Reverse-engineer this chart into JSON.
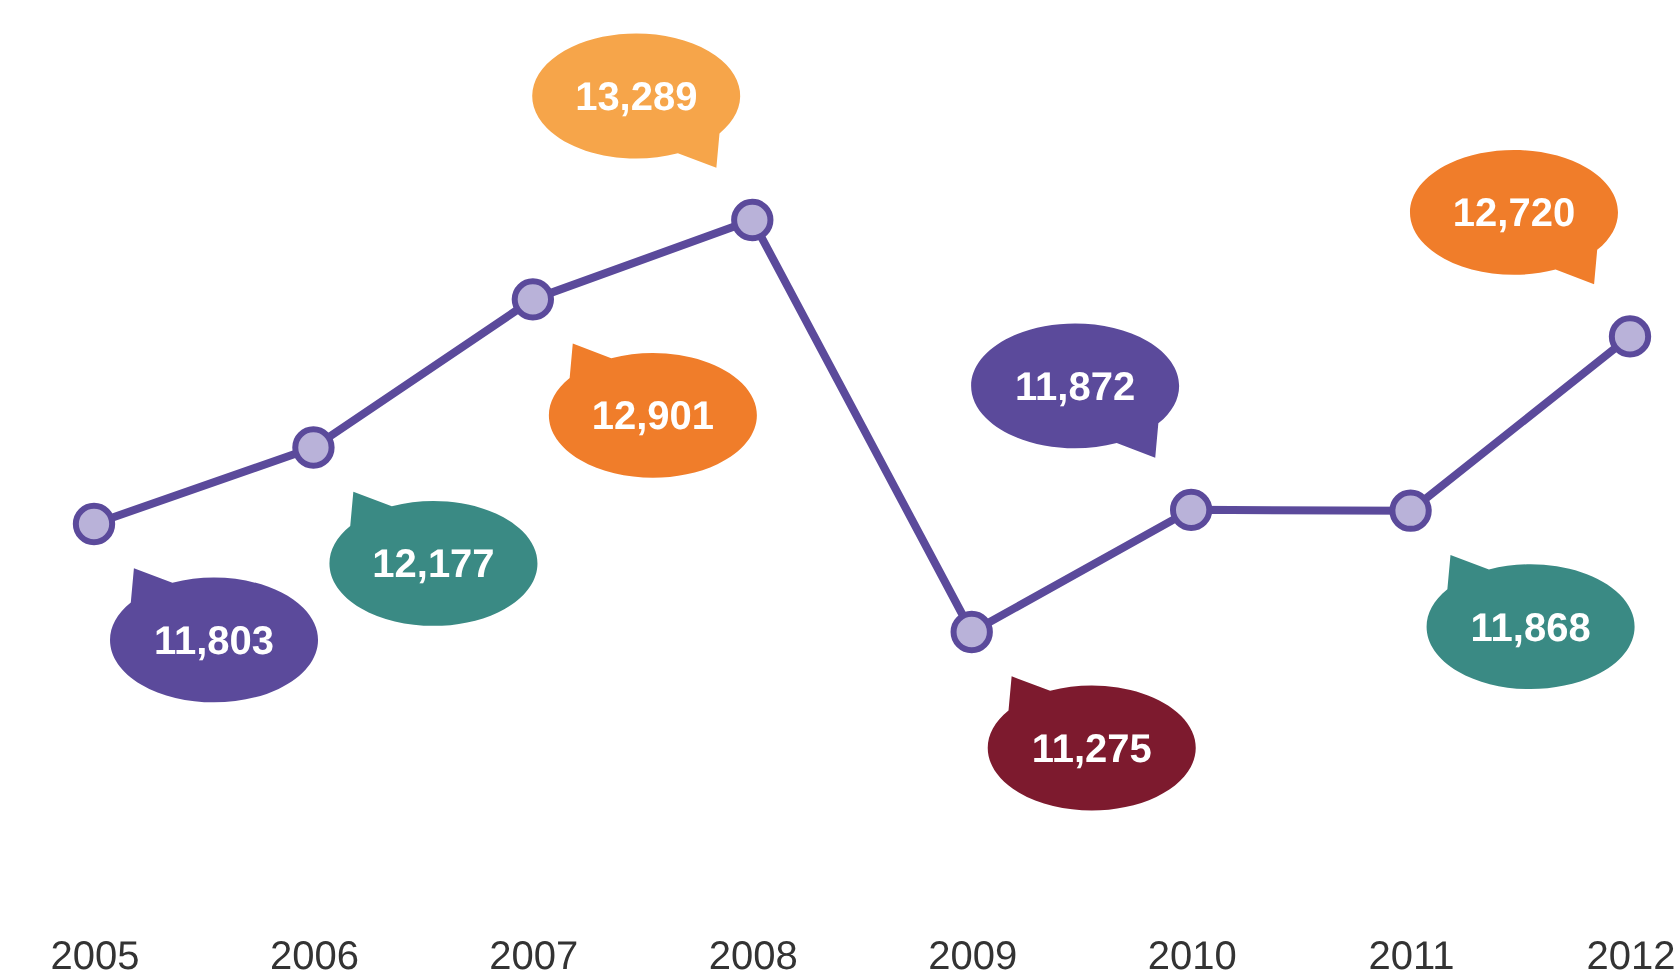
{
  "chart_data": {
    "type": "line",
    "categories": [
      "2005",
      "2006",
      "2007",
      "2008",
      "2009",
      "2010",
      "2011",
      "2012"
    ],
    "values": [
      11803,
      12177,
      12901,
      13289,
      11275,
      11872,
      11868,
      12720
    ],
    "value_labels": [
      "11,803",
      "12,177",
      "12,901",
      "13,289",
      "11,275",
      "11,872",
      "11,868",
      "12,720"
    ],
    "color": "#5b4a9b",
    "marker": "circle"
  }
}
